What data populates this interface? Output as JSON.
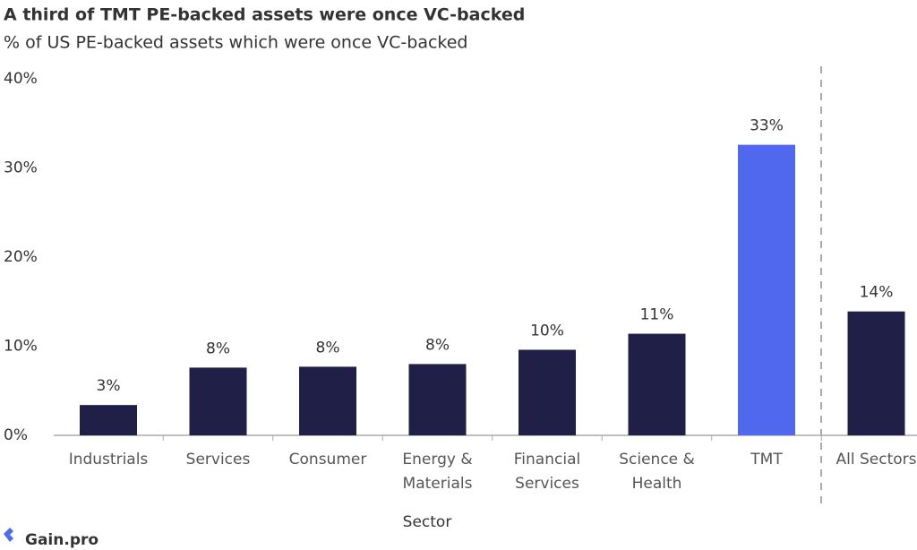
{
  "chart_data": {
    "type": "bar",
    "title": "A third of TMT PE-backed assets were once VC-backed",
    "subtitle": "% of US PE-backed assets which were once VC-backed",
    "x_label": "Sector",
    "categories": [
      "Industrials",
      "Services",
      "Consumer",
      "Energy & Materials",
      "Financial Services",
      "Science & Health",
      "TMT",
      "All Sectors"
    ],
    "values": [
      3.4,
      7.6,
      7.7,
      8.0,
      9.6,
      11.4,
      32.6,
      13.9
    ],
    "value_labels": [
      "3%",
      "8%",
      "8%",
      "8%",
      "10%",
      "11%",
      "33%",
      "14%"
    ],
    "colors": [
      "#1f1f47",
      "#1f1f47",
      "#1f1f47",
      "#1f1f47",
      "#1f1f47",
      "#1f1f47",
      "#5068ee",
      "#1f1f47"
    ],
    "ylim": [
      0,
      40
    ],
    "yticks": [
      {
        "value": 0,
        "label": "0%"
      },
      {
        "value": 10,
        "label": "10%"
      },
      {
        "value": 20,
        "label": "20%"
      },
      {
        "value": 30,
        "label": "30%"
      },
      {
        "value": 40,
        "label": "40%"
      }
    ],
    "grid": false
  },
  "footer": {
    "brand": "Gain.pro"
  }
}
